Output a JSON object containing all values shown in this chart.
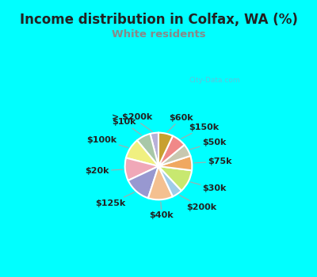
{
  "title": "Income distribution in Colfax, WA (%)",
  "subtitle": "White residents",
  "title_color": "#222222",
  "subtitle_color": "#888888",
  "bg_color": "#00ffff",
  "chart_bg_color": "#ddf0e8",
  "watermark": "City-Data.com",
  "labels": [
    "> $200k",
    "$10k",
    "$100k",
    "$20k",
    "$125k",
    "$40k",
    "$200k",
    "$30k",
    "$75k",
    "$50k",
    "$150k",
    "$60k"
  ],
  "values": [
    4,
    7,
    10,
    11,
    13,
    12,
    5,
    11,
    7,
    6,
    7,
    7
  ],
  "colors": [
    "#b8b0d8",
    "#a8c8a8",
    "#f0f080",
    "#f0a8b8",
    "#9898d0",
    "#f4c090",
    "#a0cce8",
    "#c8e870",
    "#f0a860",
    "#c8c8b0",
    "#f08888",
    "#c8a030"
  ],
  "label_fontsize": 8,
  "startangle": 90,
  "figsize": [
    4.0,
    3.5
  ],
  "dpi": 100
}
